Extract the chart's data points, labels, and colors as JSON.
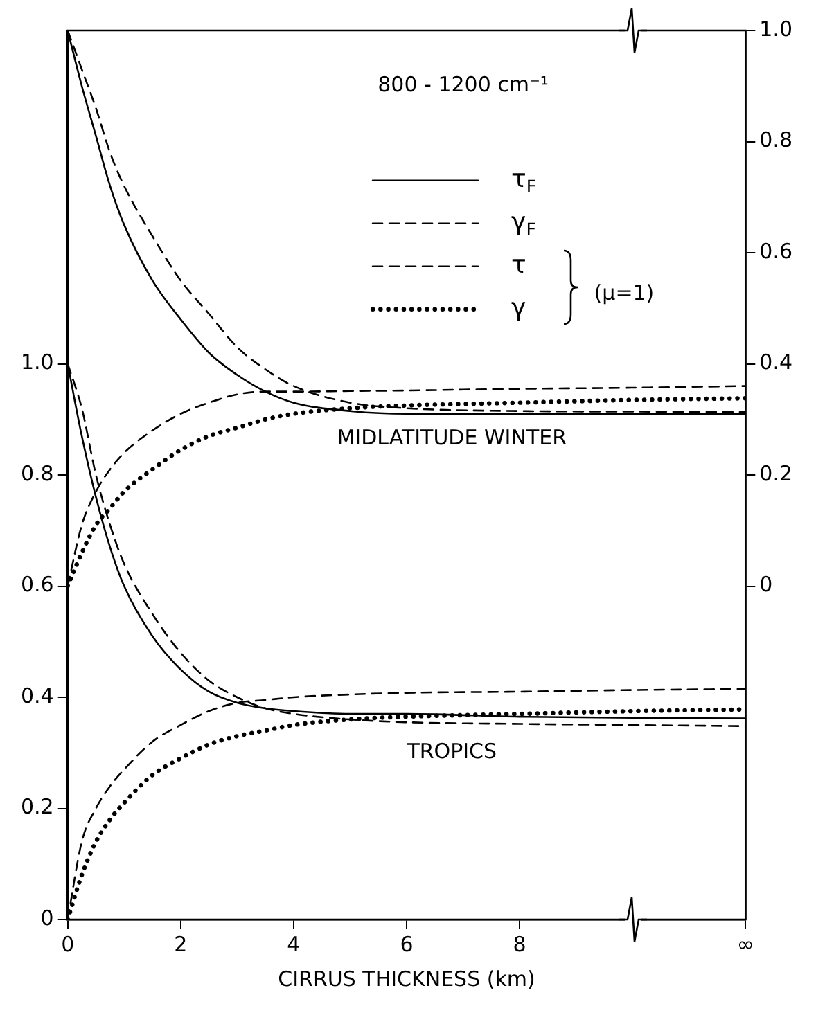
{
  "chart_data": {
    "type": "line",
    "xlabel": "CIRRUS THICKNESS (km)",
    "x": [
      0,
      0.25,
      0.5,
      0.75,
      1,
      1.5,
      2,
      2.5,
      3,
      3.5,
      4,
      5,
      6,
      8,
      10,
      12
    ],
    "xlim": [
      0,
      12
    ],
    "xticks": [
      0,
      2,
      4,
      6,
      8,
      {
        "value": 12,
        "label": "∞"
      }
    ],
    "ylim": [
      0,
      1.6
    ],
    "yticks": [
      0,
      0.2,
      0.4,
      0.6,
      0.8,
      {
        "value": 1,
        "label": "1.0"
      }
    ],
    "y2lim": [
      -0.6,
      1.0
    ],
    "y2ticks": [
      0,
      0.2,
      0.4,
      0.6,
      0.8,
      {
        "value": 1,
        "label": "1.0"
      }
    ],
    "series": [
      {
        "name": "τ$_{F}$",
        "color": "#000000",
        "axis": "y2",
        "line_style": "solid",
        "values": [
          1,
          0.9,
          0.81,
          0.72,
          0.65,
          0.55,
          0.48,
          0.42,
          0.38,
          0.35,
          0.33,
          0.315,
          0.31,
          0.31,
          0.31,
          0.31
        ]
      },
      {
        "name": "γ$_{F}$",
        "color": "#000000",
        "axis": "y2",
        "line_style": "dashed",
        "values": [
          0,
          0.11,
          0.17,
          0.21,
          0.24,
          0.28,
          0.31,
          0.33,
          0.345,
          0.35,
          0.35,
          0.351,
          0.352,
          0.355,
          0.357,
          0.36
        ]
      },
      {
        "name": "τ",
        "color": "#000000",
        "axis": "y2",
        "line_style": "dashed",
        "values": [
          1,
          0.93,
          0.86,
          0.78,
          0.72,
          0.63,
          0.55,
          0.49,
          0.43,
          0.39,
          0.36,
          0.33,
          0.32,
          0.315,
          0.314,
          0.313
        ]
      },
      {
        "name": "γ",
        "color": "#000000",
        "axis": "y2",
        "line_style": "dotted",
        "values": [
          0,
          0.06,
          0.11,
          0.14,
          0.17,
          0.21,
          0.245,
          0.27,
          0.285,
          0.3,
          0.31,
          0.32,
          0.325,
          0.33,
          0.335,
          0.338
        ]
      },
      {
        "color": "#000000",
        "line_style": "solid",
        "values": [
          1,
          0.87,
          0.76,
          0.67,
          0.6,
          0.51,
          0.45,
          0.41,
          0.39,
          0.38,
          0.375,
          0.37,
          0.37,
          0.365,
          0.363,
          0.362
        ]
      },
      {
        "color": "#000000",
        "line_style": "dashed",
        "values": [
          0,
          0.14,
          0.2,
          0.24,
          0.27,
          0.32,
          0.35,
          0.375,
          0.39,
          0.395,
          0.4,
          0.405,
          0.408,
          0.41,
          0.413,
          0.415
        ]
      },
      {
        "color": "#000000",
        "line_style": "dashed",
        "values": [
          1,
          0.92,
          0.8,
          0.71,
          0.64,
          0.55,
          0.48,
          0.43,
          0.4,
          0.38,
          0.37,
          0.36,
          0.355,
          0.352,
          0.35,
          0.348
        ]
      },
      {
        "color": "#000000",
        "line_style": "dotted",
        "values": [
          0,
          0.08,
          0.14,
          0.18,
          0.21,
          0.26,
          0.29,
          0.315,
          0.33,
          0.34,
          0.35,
          0.36,
          0.365,
          0.37,
          0.375,
          0.378
        ]
      }
    ],
    "annotations": [
      "800 - 1200 cm⁻¹",
      "(μ=1)",
      "MIDLATITUDE WINTER",
      "TROPICS"
    ],
    "legend": "top right",
    "grid": false,
    "marker": "none"
  }
}
